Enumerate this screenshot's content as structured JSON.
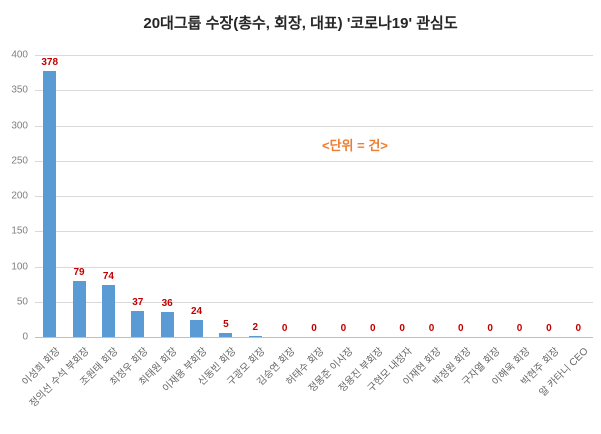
{
  "chart_data": {
    "type": "bar",
    "title": "20대그룹 수장(총수, 회장, 대표) '코로나19' 관심도",
    "annotation": "<단위 = 건>",
    "categories": [
      "이성희 회장",
      "정의선 수석 부회장",
      "조원태 회장",
      "최정우 회장",
      "최태원 회장",
      "이재용 부회장",
      "신동빈 회장",
      "구광모 회장",
      "김승연 회장",
      "허태수 회장",
      "정몽준 이사장",
      "정용진 부회장",
      "구현모 내정자",
      "이재현 회장",
      "박정원 회장",
      "구자열 회장",
      "이해욱 회장",
      "박현주 회장",
      "알 카타니 CEO"
    ],
    "values": [
      378,
      79,
      74,
      37,
      36,
      24,
      5,
      2,
      0,
      0,
      0,
      0,
      0,
      0,
      0,
      0,
      0,
      0,
      0
    ],
    "xlabel": "",
    "ylabel": "",
    "ylim": [
      0,
      400
    ],
    "yticks": [
      0,
      50,
      100,
      150,
      200,
      250,
      300,
      350,
      400
    ],
    "grid": true,
    "legend": "none",
    "bar_color": "#5b9bd5",
    "value_label_color": "#c00000",
    "annotation_color": "#ed7d31"
  }
}
